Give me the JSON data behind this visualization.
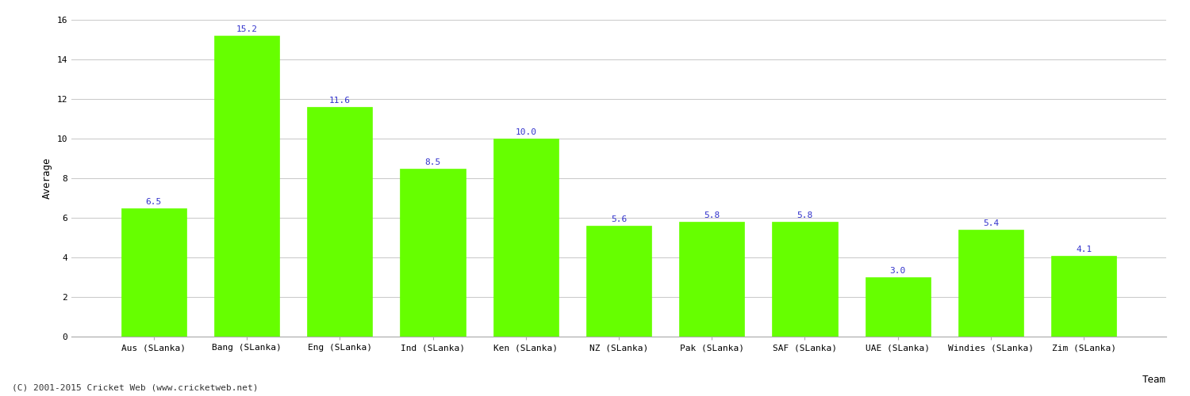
{
  "categories": [
    "Aus (SLanka)",
    "Bang (SLanka)",
    "Eng (SLanka)",
    "Ind (SLanka)",
    "Ken (SLanka)",
    "NZ (SLanka)",
    "Pak (SLanka)",
    "SAF (SLanka)",
    "UAE (SLanka)",
    "Windies (SLanka)",
    "Zim (SLanka)"
  ],
  "values": [
    6.5,
    15.2,
    11.6,
    8.5,
    10.0,
    5.6,
    5.8,
    5.8,
    3.0,
    5.4,
    4.1
  ],
  "bar_color": "#66ff00",
  "bar_edge_color": "#66ff00",
  "label_color": "#3333cc",
  "ylabel": "Average",
  "xlabel": "Team",
  "ylim": [
    0,
    16
  ],
  "yticks": [
    0,
    2,
    4,
    6,
    8,
    10,
    12,
    14,
    16
  ],
  "grid_color": "#cccccc",
  "bg_color": "#ffffff",
  "footer": "(C) 2001-2015 Cricket Web (www.cricketweb.net)",
  "axis_label_fontsize": 9,
  "tick_fontsize": 8,
  "bar_label_fontsize": 8,
  "footer_fontsize": 8
}
